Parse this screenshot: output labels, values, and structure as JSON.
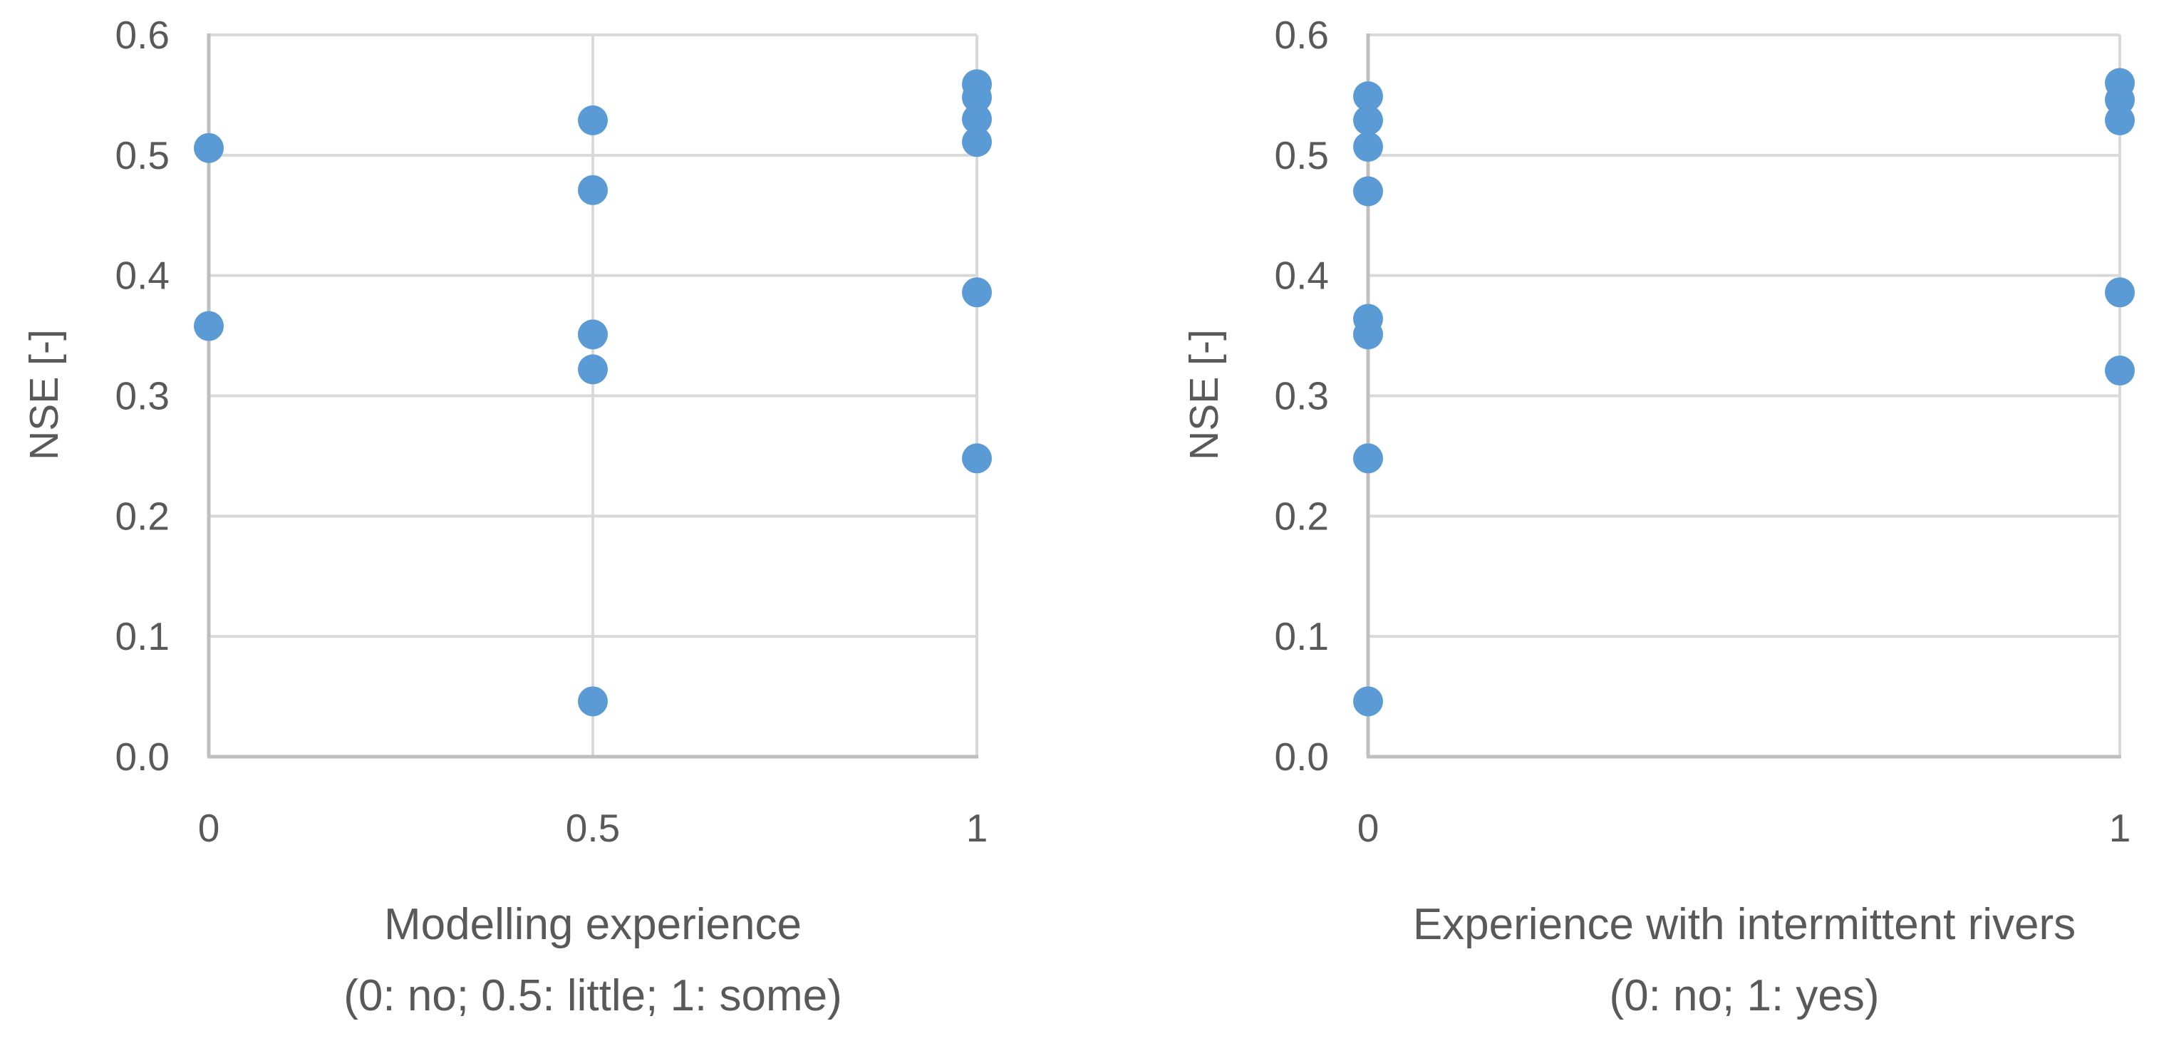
{
  "colors": {
    "marker": "#5B9BD5",
    "gridline": "#D9D9D9",
    "axis": "#BFBFBF",
    "text": "#595959",
    "background": "#FFFFFF"
  },
  "chart_data": [
    {
      "type": "scatter",
      "ylabel": "NSE [-]",
      "xlabel_line1": "Modelling experience",
      "xlabel_line2": "(0: no; 0.5: little; 1: some)",
      "xlim": [
        0,
        1
      ],
      "ylim": [
        0.0,
        0.6
      ],
      "grid": true,
      "x_ticks": [
        0,
        0.5,
        1
      ],
      "x_tick_labels": [
        "0",
        "0.5",
        "1"
      ],
      "y_ticks": [
        0.0,
        0.1,
        0.2,
        0.3,
        0.4,
        0.5,
        0.6
      ],
      "y_tick_labels": [
        "0.0",
        "0.1",
        "0.2",
        "0.3",
        "0.4",
        "0.5",
        "0.6"
      ],
      "points": [
        {
          "x": 0,
          "y": 0.506
        },
        {
          "x": 0,
          "y": 0.358
        },
        {
          "x": 0.5,
          "y": 0.529
        },
        {
          "x": 0.5,
          "y": 0.471
        },
        {
          "x": 0.5,
          "y": 0.351
        },
        {
          "x": 0.5,
          "y": 0.322
        },
        {
          "x": 0.5,
          "y": 0.046
        },
        {
          "x": 1,
          "y": 0.559
        },
        {
          "x": 1,
          "y": 0.548
        },
        {
          "x": 1,
          "y": 0.53
        },
        {
          "x": 1,
          "y": 0.511
        },
        {
          "x": 1,
          "y": 0.386
        },
        {
          "x": 1,
          "y": 0.248
        }
      ]
    },
    {
      "type": "scatter",
      "ylabel": "NSE [-]",
      "xlabel_line1": "Experience with intermittent rivers",
      "xlabel_line2": "(0: no; 1: yes)",
      "xlim": [
        0,
        1
      ],
      "ylim": [
        0.0,
        0.6
      ],
      "grid": true,
      "x_ticks": [
        0,
        1
      ],
      "x_tick_labels": [
        "0",
        "1"
      ],
      "y_ticks": [
        0.0,
        0.1,
        0.2,
        0.3,
        0.4,
        0.5,
        0.6
      ],
      "y_tick_labels": [
        "0.0",
        "0.1",
        "0.2",
        "0.3",
        "0.4",
        "0.5",
        "0.6"
      ],
      "points": [
        {
          "x": 0,
          "y": 0.549
        },
        {
          "x": 0,
          "y": 0.529
        },
        {
          "x": 0,
          "y": 0.507
        },
        {
          "x": 0,
          "y": 0.47
        },
        {
          "x": 0,
          "y": 0.364
        },
        {
          "x": 0,
          "y": 0.351
        },
        {
          "x": 0,
          "y": 0.248
        },
        {
          "x": 0,
          "y": 0.046
        },
        {
          "x": 1,
          "y": 0.56
        },
        {
          "x": 1,
          "y": 0.546
        },
        {
          "x": 1,
          "y": 0.529
        },
        {
          "x": 1,
          "y": 0.386
        },
        {
          "x": 1,
          "y": 0.321
        }
      ]
    }
  ]
}
